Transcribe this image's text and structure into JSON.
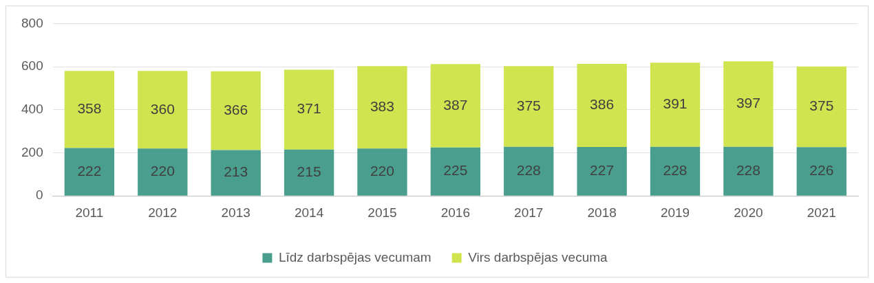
{
  "chart_data": {
    "type": "bar",
    "stacked": true,
    "categories": [
      "2011",
      "2012",
      "2013",
      "2014",
      "2015",
      "2016",
      "2017",
      "2018",
      "2019",
      "2020",
      "2021"
    ],
    "series": [
      {
        "name": "Līdz darbspējas vecumam",
        "color": "#4a9e8e",
        "values": [
          222,
          220,
          213,
          215,
          220,
          225,
          228,
          227,
          228,
          228,
          226
        ]
      },
      {
        "name": "Virs darbspējas vecuma",
        "color": "#cfe44f",
        "values": [
          358,
          360,
          366,
          371,
          383,
          387,
          375,
          386,
          391,
          397,
          375
        ]
      }
    ],
    "ylim": [
      0,
      800
    ],
    "yticks": [
      0,
      200,
      400,
      600,
      800
    ],
    "grid": "y",
    "legend": "bottom",
    "data_labels": true
  }
}
